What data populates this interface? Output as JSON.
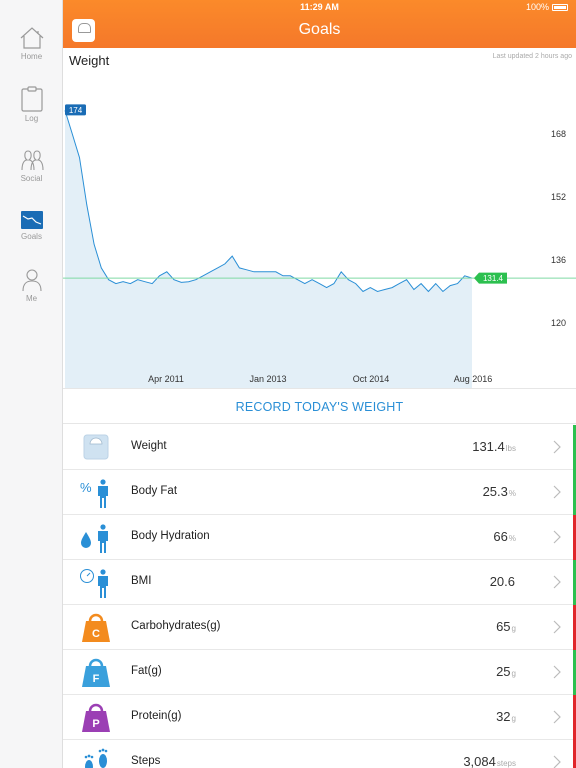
{
  "status": {
    "time": "11:29 AM",
    "battery": "100%"
  },
  "header": {
    "title": "Goals"
  },
  "sidebar": {
    "items": [
      {
        "label": "Home",
        "icon": "home-icon"
      },
      {
        "label": "Log",
        "icon": "clipboard-icon"
      },
      {
        "label": "Social",
        "icon": "people-icon"
      },
      {
        "label": "Goals",
        "icon": "goals-chart-icon",
        "active": true
      },
      {
        "label": "Me",
        "icon": "person-icon"
      }
    ]
  },
  "chart": {
    "title": "Weight",
    "updated": "Last updated 2 hours ago",
    "start_label": "174",
    "current_label": "131.4",
    "goal_line": 131.4
  },
  "chart_data": {
    "type": "area",
    "x_labels": [
      "Apr 2011",
      "Jan 2013",
      "Oct 2014",
      "Aug 2016"
    ],
    "y_ticks": [
      168,
      152,
      136,
      120
    ],
    "ylim": [
      110,
      180
    ],
    "series": [
      {
        "values": [
          174,
          168,
          162,
          150,
          140,
          134,
          131,
          130,
          130.5,
          130,
          131,
          130.5,
          130,
          132,
          133,
          131,
          130.3,
          130.5,
          131,
          132,
          133,
          134,
          135,
          137,
          134,
          133.5,
          133,
          133,
          133,
          133,
          132,
          132,
          131,
          130,
          131,
          130,
          129,
          130,
          133,
          131,
          130,
          128,
          129,
          128,
          128.5,
          129,
          130,
          131,
          128.5,
          130,
          128,
          130,
          128,
          129.5,
          130,
          132,
          131.4
        ]
      }
    ]
  },
  "record": {
    "label": "RECORD TODAY'S WEIGHT"
  },
  "metrics": [
    {
      "name": "Weight",
      "value": "131.4",
      "unit": "lbs",
      "icon": "scale-icon",
      "status_color": "#2cc04f"
    },
    {
      "name": "Body Fat",
      "value": "25.3",
      "unit": "%",
      "icon": "body-fat-icon",
      "status_color": "#2cc04f"
    },
    {
      "name": "Body Hydration",
      "value": "66",
      "unit": "%",
      "icon": "hydration-icon",
      "status_color": "#e0262a"
    },
    {
      "name": "BMI",
      "value": "20.6",
      "unit": "",
      "icon": "bmi-icon",
      "status_color": "#2cc04f"
    },
    {
      "name": "Carbohydrates(g)",
      "value": "65",
      "unit": "g",
      "icon": "carbs-weight-icon",
      "icon_letter": "C",
      "icon_color": "#f38b1e",
      "status_color": "#e0262a"
    },
    {
      "name": "Fat(g)",
      "value": "25",
      "unit": "g",
      "icon": "fat-weight-icon",
      "icon_letter": "F",
      "icon_color": "#3aa0dc",
      "status_color": "#2cc04f"
    },
    {
      "name": "Protein(g)",
      "value": "32",
      "unit": "g",
      "icon": "protein-weight-icon",
      "icon_letter": "P",
      "icon_color": "#9b3fb4",
      "status_color": "#e0262a"
    },
    {
      "name": "Steps",
      "value": "3,084",
      "unit": "steps",
      "icon": "footprints-icon",
      "status_color": "#e0262a"
    }
  ]
}
